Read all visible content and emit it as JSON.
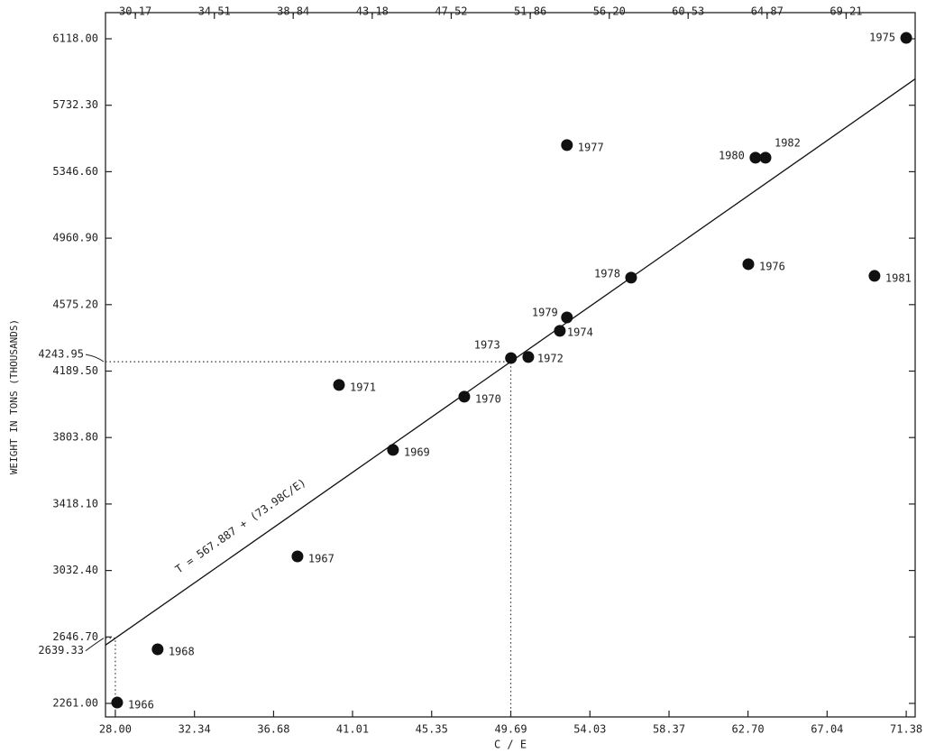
{
  "chart_data": {
    "type": "scatter",
    "xlabel": "C / E",
    "ylabel": "WEIGHT IN TONS (THOUSANDS)",
    "point_labels": [
      "1966",
      "1967",
      "1968",
      "1969",
      "1970",
      "1971",
      "1972",
      "1973",
      "1974",
      "1975",
      "1976",
      "1977",
      "1978",
      "1979",
      "1980",
      "1981",
      "1982"
    ],
    "x": [
      28.1,
      37.99,
      30.32,
      43.23,
      47.14,
      40.27,
      50.65,
      49.7,
      52.38,
      71.38,
      62.72,
      52.77,
      56.29,
      52.77,
      63.11,
      69.64,
      63.66
    ],
    "values": [
      2266,
      3114,
      2575,
      3732,
      4041,
      4109,
      4271,
      4265,
      4423,
      6123,
      4810,
      5501,
      4732,
      4501,
      5428,
      4742,
      5428
    ],
    "color": "#111111",
    "xlim": [
      27.46,
      71.87
    ],
    "xticks": [
      {
        "value": 28.0,
        "label": "28.00"
      },
      32.34,
      36.68,
      41.01,
      45.35,
      49.69,
      54.03,
      58.37,
      {
        "value": 62.7,
        "label": "62.70"
      },
      67.04,
      71.38
    ],
    "x2lim": [
      28.53,
      73.0
    ],
    "x2ticks": [
      30.17,
      34.51,
      38.84,
      43.18,
      47.52,
      51.86,
      {
        "value": 56.2,
        "label": "56.20"
      },
      60.53,
      64.87,
      69.21
    ],
    "ylim": [
      2182.5,
      6269.8
    ],
    "yticks": [
      {
        "value": 2261,
        "label": "2261.00"
      },
      {
        "value": 2646.7,
        "label": "2646.70"
      },
      {
        "value": 3032.4,
        "label": "3032.40"
      },
      {
        "value": 3418.1,
        "label": "3418.10"
      },
      {
        "value": 3803.8,
        "label": "3803.80"
      },
      {
        "value": 4189.5,
        "label": "4189.50"
      },
      {
        "value": 4575.2,
        "label": "4575.20"
      },
      {
        "value": 4960.9,
        "label": "4960.90"
      },
      {
        "value": 5346.6,
        "label": "5346.60"
      },
      {
        "value": 5732.3,
        "label": "5732.30"
      },
      {
        "value": 6118,
        "label": "6118.00"
      }
    ],
    "regression": {
      "intercept": 567.887,
      "slope": 73.98,
      "label": "T = 567.887 + (73.98C/E)"
    },
    "reference_points": [
      {
        "x": 49.69,
        "y": 4243.95
      },
      {
        "x": 28.0,
        "y": 2639.33
      }
    ]
  }
}
